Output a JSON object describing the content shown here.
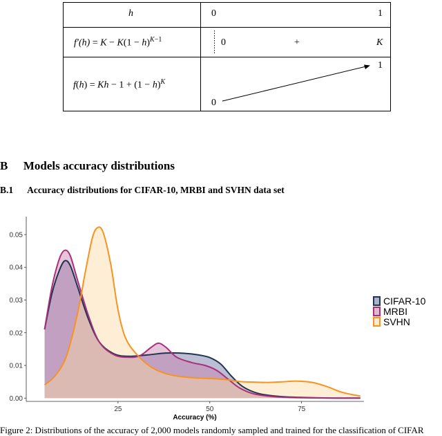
{
  "variation_table": {
    "rows": [
      {
        "label": "h",
        "values": [
          "0",
          "1"
        ]
      },
      {
        "label": "f′(h) = K − K(1 − h)^(K−1)",
        "values": [
          "0",
          "+",
          "K"
        ]
      },
      {
        "label": "f(h) = Kh − 1 + (1 − h)^K",
        "values": [
          "0",
          "1"
        ]
      }
    ]
  },
  "section": {
    "number": "B",
    "title": "Models accuracy distributions"
  },
  "subsection": {
    "number": "B.1",
    "title": "Accuracy distributions for CIFAR-10, MRBI and SVHN data set"
  },
  "caption": {
    "text": "Figure 2: Distributions of the accuracy of 2,000 models randomly sampled and trained for the classification of CIFAR"
  },
  "chart_data": {
    "type": "area",
    "xlabel": "Accuracy (%)",
    "ylabel": "",
    "xlim": [
      0,
      92
    ],
    "ylim": [
      -0.001,
      0.0555
    ],
    "x_ticks": [
      "25",
      "50",
      "75"
    ],
    "y_ticks": [
      "0.00",
      "0.01",
      "0.02",
      "0.03",
      "0.04",
      "0.05"
    ],
    "legend_position": "right",
    "series": [
      {
        "name": "CIFAR-10",
        "color": "#1f3552",
        "fill": "#6b6fa0",
        "points": [
          [
            5,
            0.021
          ],
          [
            7,
            0.032
          ],
          [
            9,
            0.039
          ],
          [
            10.5,
            0.042
          ],
          [
            12,
            0.0405
          ],
          [
            14,
            0.034
          ],
          [
            17,
            0.024
          ],
          [
            20,
            0.017
          ],
          [
            24,
            0.0135
          ],
          [
            28,
            0.0128
          ],
          [
            33,
            0.0132
          ],
          [
            38,
            0.0138
          ],
          [
            43,
            0.0137
          ],
          [
            47,
            0.0132
          ],
          [
            50,
            0.0124
          ],
          [
            53,
            0.0104
          ],
          [
            56,
            0.0066
          ],
          [
            59,
            0.0035
          ],
          [
            63,
            0.0015
          ],
          [
            68,
            0.0006
          ],
          [
            75,
            0.0002
          ],
          [
            85,
            0.0
          ],
          [
            91,
            0.0
          ]
        ]
      },
      {
        "name": "MRBI",
        "color": "#a8307a",
        "fill": "#c77dab",
        "points": [
          [
            5,
            0.021
          ],
          [
            7,
            0.034
          ],
          [
            9,
            0.0425
          ],
          [
            10.5,
            0.0452
          ],
          [
            12,
            0.0435
          ],
          [
            14,
            0.036
          ],
          [
            17,
            0.025
          ],
          [
            20,
            0.017
          ],
          [
            24,
            0.0132
          ],
          [
            28,
            0.0125
          ],
          [
            31,
            0.013
          ],
          [
            34,
            0.0155
          ],
          [
            36,
            0.0168
          ],
          [
            38,
            0.0156
          ],
          [
            41,
            0.0125
          ],
          [
            45,
            0.0109
          ],
          [
            49,
            0.0099
          ],
          [
            52,
            0.0084
          ],
          [
            55,
            0.0058
          ],
          [
            58,
            0.0032
          ],
          [
            62,
            0.0013
          ],
          [
            68,
            0.0004
          ],
          [
            75,
            0.0001
          ],
          [
            85,
            0.0
          ],
          [
            91,
            0.0
          ]
        ]
      },
      {
        "name": "SVHN",
        "color": "#f7931e",
        "fill": "#fdd9a5",
        "points": [
          [
            5,
            0.004
          ],
          [
            8,
            0.007
          ],
          [
            11,
            0.013
          ],
          [
            14,
            0.026
          ],
          [
            16,
            0.038
          ],
          [
            18,
            0.049
          ],
          [
            19.5,
            0.0522
          ],
          [
            21,
            0.0505
          ],
          [
            23,
            0.041
          ],
          [
            25,
            0.027
          ],
          [
            27,
            0.0185
          ],
          [
            30,
            0.0135
          ],
          [
            34,
            0.0095
          ],
          [
            38,
            0.0075
          ],
          [
            42,
            0.0066
          ],
          [
            46,
            0.0062
          ],
          [
            50,
            0.006
          ],
          [
            54,
            0.0057
          ],
          [
            58,
            0.0051
          ],
          [
            62,
            0.0049
          ],
          [
            66,
            0.0048
          ],
          [
            70,
            0.005
          ],
          [
            74,
            0.0052
          ],
          [
            78,
            0.0048
          ],
          [
            82,
            0.0035
          ],
          [
            86,
            0.0018
          ],
          [
            91,
            0.0006
          ]
        ]
      }
    ]
  }
}
